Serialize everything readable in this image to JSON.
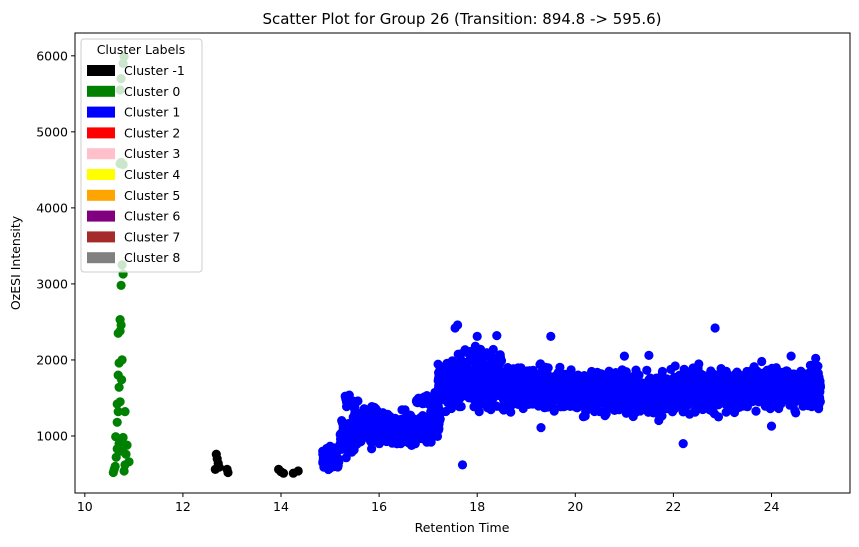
{
  "chart_data": {
    "type": "scatter",
    "title": "Scatter Plot for Group 26 (Transition: 894.8 -> 595.6)",
    "xlabel": "Retention Time",
    "ylabel": "OzESI Intensity",
    "xlim": [
      9.8,
      25.6
    ],
    "ylim": [
      250,
      6300
    ],
    "xticks": [
      10,
      12,
      14,
      16,
      18,
      20,
      22,
      24
    ],
    "yticks": [
      1000,
      2000,
      3000,
      4000,
      5000,
      6000
    ],
    "grid": false,
    "legend": {
      "title": "Cluster Labels",
      "placement": "top-left",
      "entries": [
        {
          "label": "Cluster -1",
          "color": "#000000"
        },
        {
          "label": "Cluster 0",
          "color": "#008000"
        },
        {
          "label": "Cluster 1",
          "color": "#0000ff"
        },
        {
          "label": "Cluster 2",
          "color": "#ff0000"
        },
        {
          "label": "Cluster 3",
          "color": "#ffc0cb"
        },
        {
          "label": "Cluster 4",
          "color": "#ffff00"
        },
        {
          "label": "Cluster 5",
          "color": "#ffa500"
        },
        {
          "label": "Cluster 6",
          "color": "#800080"
        },
        {
          "label": "Cluster 7",
          "color": "#a52a2a"
        },
        {
          "label": "Cluster 8",
          "color": "#808080"
        }
      ]
    },
    "series": [
      {
        "cluster": -1,
        "color": "#000000",
        "points": [
          [
            12.68,
            760
          ],
          [
            12.7,
            700
          ],
          [
            12.72,
            640
          ],
          [
            12.66,
            560
          ],
          [
            12.74,
            590
          ],
          [
            12.9,
            560
          ],
          [
            12.92,
            520
          ],
          [
            13.95,
            560
          ],
          [
            14.0,
            530
          ],
          [
            14.05,
            510
          ],
          [
            14.25,
            510
          ],
          [
            14.35,
            540
          ]
        ]
      },
      {
        "cluster": 0,
        "color": "#008000",
        "points": [
          [
            10.58,
            520
          ],
          [
            10.6,
            560
          ],
          [
            10.62,
            600
          ],
          [
            10.64,
            720
          ],
          [
            10.66,
            830
          ],
          [
            10.63,
            990
          ],
          [
            10.66,
            1180
          ],
          [
            10.68,
            1320
          ],
          [
            10.66,
            1420
          ],
          [
            10.72,
            1450
          ],
          [
            10.7,
            1640
          ],
          [
            10.75,
            1740
          ],
          [
            10.68,
            1800
          ],
          [
            10.7,
            1960
          ],
          [
            10.76,
            2000
          ],
          [
            10.68,
            2350
          ],
          [
            10.72,
            2380
          ],
          [
            10.74,
            2460
          ],
          [
            10.72,
            2530
          ],
          [
            10.74,
            2980
          ],
          [
            10.78,
            3130
          ],
          [
            10.76,
            3250
          ],
          [
            10.72,
            4580
          ],
          [
            10.74,
            4600
          ],
          [
            10.78,
            4570
          ],
          [
            10.72,
            5550
          ],
          [
            10.74,
            5700
          ],
          [
            10.78,
            5900
          ],
          [
            10.8,
            5990
          ],
          [
            10.8,
            540
          ],
          [
            10.82,
            620
          ],
          [
            10.84,
            760
          ],
          [
            10.86,
            880
          ],
          [
            10.9,
            660
          ],
          [
            10.78,
            980
          ],
          [
            10.82,
            1320
          ],
          [
            10.76,
            800
          ],
          [
            10.7,
            900
          ]
        ]
      },
      {
        "cluster": 1,
        "color": "#0000ff",
        "points": [
          [
            17.7,
            620
          ],
          [
            22.2,
            900
          ],
          [
            22.85,
            2420
          ],
          [
            24.0,
            1130
          ],
          [
            19.3,
            1110
          ],
          [
            17.6,
            2460
          ],
          [
            17.55,
            2420
          ],
          [
            18.0,
            2310
          ],
          [
            18.4,
            2320
          ],
          [
            19.5,
            2310
          ],
          [
            21.0,
            2050
          ],
          [
            21.5,
            2060
          ],
          [
            24.4,
            2050
          ],
          [
            24.9,
            2020
          ],
          [
            23.8,
            1980
          ]
        ],
        "bands": [
          {
            "x": [
              14.85,
              15.2
            ],
            "n": 60,
            "lo": 520,
            "hi": 900
          },
          {
            "x": [
              15.2,
              15.5
            ],
            "n": 70,
            "lo": 650,
            "hi": 1300
          },
          {
            "x": [
              15.3,
              15.6
            ],
            "n": 12,
            "lo": 1350,
            "hi": 1620
          },
          {
            "x": [
              15.5,
              16.2
            ],
            "n": 160,
            "lo": 750,
            "hi": 1450
          },
          {
            "x": [
              16.2,
              17.0
            ],
            "n": 180,
            "lo": 800,
            "hi": 1400
          },
          {
            "x": [
              16.7,
              17.2
            ],
            "n": 30,
            "lo": 1350,
            "hi": 1600
          },
          {
            "x": [
              17.0,
              17.25
            ],
            "n": 50,
            "lo": 850,
            "hi": 1550
          },
          {
            "x": [
              17.2,
              17.5
            ],
            "n": 90,
            "lo": 1250,
            "hi": 2150
          },
          {
            "x": [
              17.5,
              18.5
            ],
            "n": 330,
            "lo": 1250,
            "hi": 2250
          },
          {
            "x": [
              18.5,
              20.0
            ],
            "n": 430,
            "lo": 1200,
            "hi": 2000
          },
          {
            "x": [
              20.0,
              22.0
            ],
            "n": 540,
            "lo": 1150,
            "hi": 1950
          },
          {
            "x": [
              22.0,
              23.5
            ],
            "n": 400,
            "lo": 1200,
            "hi": 2000
          },
          {
            "x": [
              23.5,
              25.0
            ],
            "n": 420,
            "lo": 1250,
            "hi": 2000
          }
        ]
      }
    ]
  }
}
